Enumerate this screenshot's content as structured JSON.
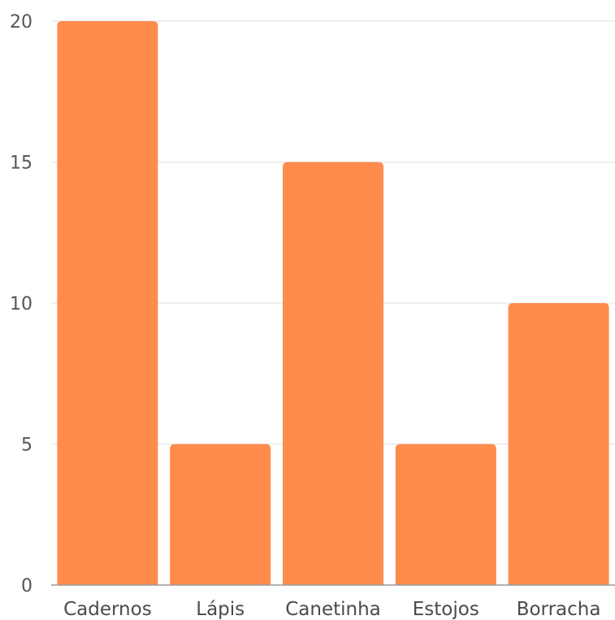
{
  "chart_data": {
    "type": "bar",
    "categories": [
      "Cadernos",
      "Lápis",
      "Canetinha",
      "Estojos",
      "Borracha"
    ],
    "values": [
      20,
      5,
      15,
      5,
      10
    ],
    "ylim": [
      0,
      20
    ],
    "yticks": [
      0,
      5,
      10,
      15,
      20
    ],
    "grid": true,
    "bar_color": "#ff8c4c",
    "title": "",
    "xlabel": "",
    "ylabel": ""
  }
}
